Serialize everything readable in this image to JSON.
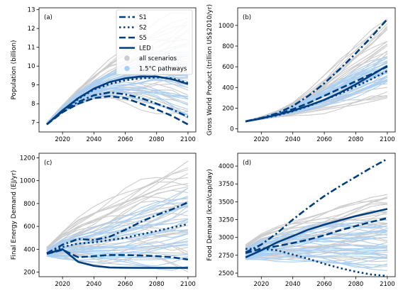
{
  "legend": {
    "items": [
      {
        "label": "S1",
        "kind": "line",
        "dash": "dashdot"
      },
      {
        "label": "S2",
        "kind": "line",
        "dash": "dotted"
      },
      {
        "label": "S5",
        "kind": "line",
        "dash": "dashed"
      },
      {
        "label": "LED",
        "kind": "line",
        "dash": "solid"
      },
      {
        "label": "all scenarios",
        "kind": "marker",
        "color": "#cccccc"
      },
      {
        "label": "1.5°C pathways",
        "kind": "marker",
        "color": "#a9cff5"
      }
    ],
    "placement": "upper-right of panel (a)"
  },
  "colors": {
    "highlight": "#003f7f",
    "all_scenarios": "#cccccc",
    "pathways_1p5": "#a9cff5"
  },
  "chart_data": [
    {
      "type": "line",
      "panel_tag": "(a)",
      "title": "",
      "xlabel": "",
      "ylabel": "Population (billion)",
      "xlim": [
        2005,
        2105
      ],
      "ylim": [
        6.5,
        13.1
      ],
      "xticks": [
        2020,
        2040,
        2060,
        2080,
        2100
      ],
      "yticks": [
        7,
        8,
        9,
        10,
        11,
        12,
        13
      ],
      "grid": false,
      "legend": "top-right",
      "x": [
        2010,
        2020,
        2030,
        2040,
        2050,
        2060,
        2070,
        2080,
        2090,
        2100
      ],
      "series": [
        {
          "name": "S1",
          "values": [
            6.9,
            7.6,
            8.1,
            8.45,
            8.6,
            8.5,
            8.3,
            8.0,
            7.7,
            7.3
          ]
        },
        {
          "name": "S2",
          "values": [
            6.9,
            7.65,
            8.25,
            8.75,
            9.05,
            9.25,
            9.35,
            9.4,
            9.35,
            9.1
          ]
        },
        {
          "name": "S5",
          "values": [
            6.9,
            7.55,
            8.0,
            8.3,
            8.4,
            8.3,
            8.0,
            7.7,
            7.35,
            6.9
          ]
        },
        {
          "name": "LED",
          "values": [
            6.9,
            7.65,
            8.3,
            8.8,
            9.15,
            9.35,
            9.45,
            9.45,
            9.3,
            9.05
          ]
        }
      ],
      "all_scenarios_band": {
        "upper": [
          7.0,
          7.9,
          8.8,
          9.6,
          10.3,
          10.9,
          11.5,
          12.0,
          12.5,
          12.9
        ],
        "lower": [
          6.9,
          7.5,
          7.9,
          8.2,
          8.3,
          8.2,
          8.0,
          7.7,
          7.3,
          6.9
        ]
      },
      "pathways_band": {
        "upper": [
          7.0,
          7.85,
          8.6,
          9.2,
          9.65,
          10.05,
          10.4,
          10.7,
          10.9,
          11.1
        ],
        "lower": [
          6.9,
          7.55,
          8.0,
          8.3,
          8.45,
          8.4,
          8.2,
          7.9,
          7.55,
          7.2
        ]
      }
    },
    {
      "type": "line",
      "panel_tag": "(b)",
      "title": "",
      "xlabel": "",
      "ylabel": "Gross World Product (trillion US$2010/yr)",
      "xlim": [
        2005,
        2105
      ],
      "ylim": [
        -30,
        1170
      ],
      "xticks": [
        2020,
        2040,
        2060,
        2080,
        2100
      ],
      "yticks": [
        0,
        200,
        400,
        600,
        800,
        1000
      ],
      "grid": false,
      "x": [
        2010,
        2020,
        2030,
        2040,
        2050,
        2060,
        2070,
        2080,
        2090,
        2100
      ],
      "series": [
        {
          "name": "S1",
          "values": [
            72,
            105,
            150,
            220,
            320,
            440,
            580,
            730,
            890,
            1060
          ]
        },
        {
          "name": "S2",
          "values": [
            72,
            100,
            130,
            170,
            220,
            280,
            340,
            410,
            480,
            560
          ]
        },
        {
          "name": "S5",
          "values": [
            72,
            102,
            140,
            190,
            250,
            320,
            390,
            460,
            530,
            600
          ]
        },
        {
          "name": "LED",
          "values": [
            72,
            100,
            135,
            175,
            225,
            280,
            350,
            430,
            520,
            610
          ]
        }
      ],
      "all_scenarios_band": {
        "upper": [
          78,
          120,
          180,
          260,
          370,
          500,
          650,
          800,
          960,
          1130
        ],
        "lower": [
          70,
          90,
          110,
          130,
          150,
          170,
          190,
          210,
          235,
          260
        ]
      },
      "pathways_band": {
        "upper": [
          76,
          112,
          160,
          225,
          300,
          390,
          470,
          560,
          630,
          700
        ],
        "lower": [
          70,
          95,
          120,
          150,
          185,
          225,
          270,
          320,
          380,
          440
        ]
      }
    },
    {
      "type": "line",
      "panel_tag": "(c)",
      "title": "",
      "xlabel": "",
      "ylabel": "Final Energy Demand (EJ/yr)",
      "xlim": [
        2005,
        2105
      ],
      "ylim": [
        160,
        1240
      ],
      "xticks": [
        2020,
        2040,
        2060,
        2080,
        2100
      ],
      "yticks": [
        200,
        400,
        600,
        800,
        1000,
        1200
      ],
      "grid": false,
      "x": [
        2010,
        2020,
        2030,
        2040,
        2050,
        2060,
        2070,
        2080,
        2090,
        2100
      ],
      "series": [
        {
          "name": "S1",
          "values": [
            365,
            440,
            490,
            480,
            510,
            570,
            640,
            700,
            750,
            810
          ]
        },
        {
          "name": "S2",
          "values": [
            365,
            420,
            450,
            460,
            480,
            500,
            530,
            560,
            590,
            620
          ]
        },
        {
          "name": "S5",
          "values": [
            360,
            395,
            330,
            340,
            350,
            350,
            345,
            340,
            330,
            310
          ]
        },
        {
          "name": "LED",
          "values": [
            360,
            400,
            290,
            255,
            240,
            238,
            237,
            237,
            237,
            237
          ]
        }
      ],
      "all_scenarios_band": {
        "upper": [
          420,
          560,
          680,
          760,
          830,
          900,
          970,
          1040,
          1110,
          1170
        ],
        "lower": [
          340,
          330,
          310,
          300,
          290,
          280,
          270,
          265,
          260,
          255
        ]
      },
      "pathways_band": {
        "upper": [
          400,
          490,
          540,
          590,
          640,
          700,
          760,
          820,
          870,
          930
        ],
        "lower": [
          340,
          320,
          300,
          280,
          260,
          250,
          245,
          240,
          238,
          236
        ]
      }
    },
    {
      "type": "line",
      "panel_tag": "(d)",
      "title": "",
      "xlabel": "",
      "ylabel": "Food Demand (kcal/cap/day)",
      "xlim": [
        2005,
        2105
      ],
      "ylim": [
        2450,
        4180
      ],
      "xticks": [
        2020,
        2040,
        2060,
        2080,
        2100
      ],
      "yticks": [
        2500,
        2750,
        3000,
        3250,
        3500,
        3750,
        4000
      ],
      "grid": false,
      "x": [
        2010,
        2020,
        2030,
        2040,
        2050,
        2060,
        2070,
        2080,
        2090,
        2100
      ],
      "series": [
        {
          "name": "S1",
          "values": [
            2790,
            2900,
            3060,
            3250,
            3420,
            3580,
            3720,
            3850,
            3980,
            4100
          ]
        },
        {
          "name": "S2",
          "values": [
            2840,
            2840,
            2820,
            2760,
            2700,
            2630,
            2570,
            2520,
            2480,
            2460
          ]
        },
        {
          "name": "S5",
          "values": [
            2780,
            2840,
            2880,
            2920,
            2970,
            3030,
            3100,
            3160,
            3220,
            3270
          ]
        },
        {
          "name": "LED",
          "values": [
            2720,
            2820,
            2930,
            3020,
            3110,
            3180,
            3240,
            3300,
            3350,
            3400
          ]
        }
      ],
      "all_scenarios_band": {
        "upper": [
          2900,
          3050,
          3150,
          3230,
          3300,
          3370,
          3440,
          3500,
          3560,
          3600
        ],
        "lower": [
          2700,
          2720,
          2700,
          2690,
          2680,
          2670,
          2660,
          2650,
          2640,
          2630
        ]
      },
      "pathways_band": {
        "upper": [
          2850,
          2980,
          3050,
          3100,
          3150,
          3180,
          3200,
          3220,
          3240,
          3260
        ],
        "lower": [
          2690,
          2700,
          2680,
          2660,
          2640,
          2620,
          2600,
          2590,
          2580,
          2570
        ]
      }
    }
  ]
}
